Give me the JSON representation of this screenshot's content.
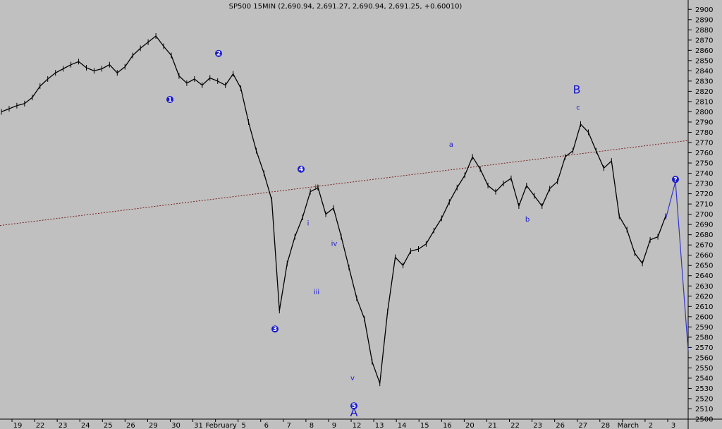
{
  "chart_data": {
    "type": "line",
    "title": "SP500 15MIN (2,690.94, 2,691.27, 2,690.94, 2,691.25, +0.60010)",
    "xlabel": "",
    "ylabel": "",
    "ylim": [
      2500,
      2905
    ],
    "grid": false,
    "legend": "none",
    "y_ticks": [
      2500,
      2510,
      2520,
      2530,
      2540,
      2550,
      2560,
      2570,
      2580,
      2590,
      2600,
      2610,
      2620,
      2630,
      2640,
      2650,
      2660,
      2670,
      2680,
      2690,
      2700,
      2710,
      2720,
      2730,
      2740,
      2750,
      2760,
      2770,
      2780,
      2790,
      2800,
      2810,
      2820,
      2830,
      2840,
      2850,
      2860,
      2870,
      2880,
      2890,
      2900
    ],
    "x_ticks": [
      "19",
      "22",
      "23",
      "24",
      "25",
      "26",
      "29",
      "30",
      "31",
      "February",
      "5",
      "6",
      "7",
      "8",
      "9",
      "12",
      "13",
      "14",
      "15",
      "16",
      "20",
      "21",
      "22",
      "23",
      "26",
      "27",
      "28",
      "March",
      "2",
      "3"
    ],
    "series": [
      {
        "values": [
          2800,
          2803,
          2806,
          2808,
          2814,
          2825,
          2832,
          2838,
          2842,
          2846,
          2849,
          2843,
          2840,
          2842,
          2846,
          2838,
          2844,
          2855,
          2862,
          2868,
          2874,
          2864,
          2855,
          2835,
          2828,
          2832,
          2826,
          2833,
          2830,
          2826,
          2837,
          2823,
          2790,
          2762,
          2740,
          2714,
          2606,
          2652,
          2678,
          2697,
          2722,
          2726,
          2700,
          2706,
          2678,
          2648,
          2618,
          2598,
          2556,
          2535,
          2605,
          2658,
          2650,
          2664,
          2666,
          2671,
          2684,
          2696,
          2712,
          2726,
          2738,
          2756,
          2744,
          2728,
          2722,
          2730,
          2735,
          2708,
          2728,
          2718,
          2708,
          2725,
          2732,
          2756,
          2762,
          2788,
          2780,
          2762,
          2745,
          2752,
          2698,
          2685,
          2662,
          2652,
          2675,
          2678,
          2698
        ]
      }
    ],
    "trendline": {
      "y_start": 2689,
      "y_end": 2772
    },
    "projection": [
      2695,
      2732,
      2567
    ],
    "annotations": {
      "wave_circles": [
        {
          "label": "1",
          "near": 2812
        },
        {
          "label": "2",
          "near": 2857
        },
        {
          "label": "3",
          "near": 2588
        },
        {
          "label": "4",
          "near": 2744
        },
        {
          "label": "5",
          "near": 2513
        },
        {
          "label": "?",
          "near": 2734
        }
      ],
      "wave_letters": [
        {
          "label": "i",
          "near": 2689
        },
        {
          "label": "ii",
          "near": 2724
        },
        {
          "label": "iii",
          "near": 2622
        },
        {
          "label": "iv",
          "near": 2669
        },
        {
          "label": "v",
          "near": 2538
        },
        {
          "label": "a",
          "near": 2766
        },
        {
          "label": "b",
          "near": 2693
        },
        {
          "label": "c",
          "near": 2802
        }
      ],
      "wave_big": [
        {
          "label": "A",
          "near": 2500
        },
        {
          "label": "B",
          "near": 2815
        }
      ]
    }
  }
}
